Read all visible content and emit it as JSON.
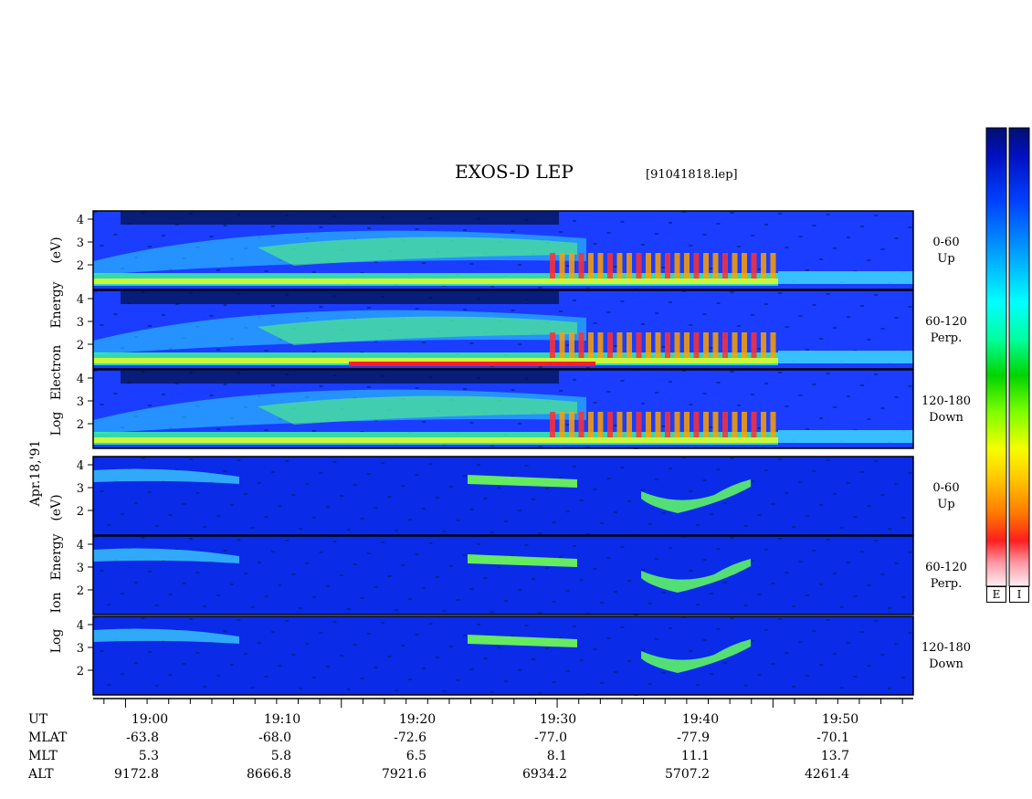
{
  "header": {
    "title": "EXOS-D LEP",
    "filename": "[91041818.lep]"
  },
  "colorbars": {
    "labels": [
      "E",
      "I"
    ],
    "stops": [
      "#ffeef4",
      "#ff9aa6",
      "#ff1e1e",
      "#ff7a00",
      "#ffcc00",
      "#f5ff00",
      "#7dff00",
      "#00d400",
      "#00ff9e",
      "#00ffff",
      "#00a6ff",
      "#0040ff",
      "#0010c0",
      "#001070"
    ]
  },
  "side": {
    "date": "Apr.18,'91",
    "electron_ylabel": [
      "Electron",
      "Energy",
      "(eV)"
    ],
    "electron_log": "Log",
    "ion_ylabel": [
      "Ion",
      "Energy",
      "(eV)"
    ],
    "ion_log": "Log"
  },
  "chart_data": {
    "type": "heatmap",
    "title": "EXOS-D LEP",
    "xlabel": "UT",
    "x_ticks": [
      "19:00",
      "19:10",
      "19:20",
      "19:30",
      "19:40",
      "19:50"
    ],
    "x_range_minutes": [
      18.5,
      56.5
    ],
    "ylim": [
      1,
      4.2
    ],
    "y_ticks": [
      "2",
      "3",
      "4"
    ],
    "panels": [
      {
        "species": "Electron",
        "pitch_angle": "0-60",
        "direction": "Up"
      },
      {
        "species": "Electron",
        "pitch_angle": "60-120",
        "direction": "Perp."
      },
      {
        "species": "Electron",
        "pitch_angle": "120-180",
        "direction": "Down"
      },
      {
        "species": "Ion",
        "pitch_angle": "0-60",
        "direction": "Up"
      },
      {
        "species": "Ion",
        "pitch_angle": "60-120",
        "direction": "Perp."
      },
      {
        "species": "Ion",
        "pitch_angle": "120-180",
        "direction": "Down"
      }
    ],
    "ephemeris": {
      "rows": [
        "UT",
        "MLAT",
        "MLT",
        "ALT"
      ],
      "UT": [
        "19:00",
        "19:10",
        "19:20",
        "19:30",
        "19:40",
        "19:50"
      ],
      "MLAT": [
        "-63.8",
        "-68.0",
        "-72.6",
        "-77.0",
        "-77.9",
        "-70.1"
      ],
      "MLT": [
        "5.3",
        "5.8",
        "6.5",
        "8.1",
        "11.1",
        "13.7"
      ],
      "ALT": [
        "9172.8",
        "8666.8",
        "7921.6",
        "6934.2",
        "5707.2",
        "4261.4"
      ]
    }
  }
}
